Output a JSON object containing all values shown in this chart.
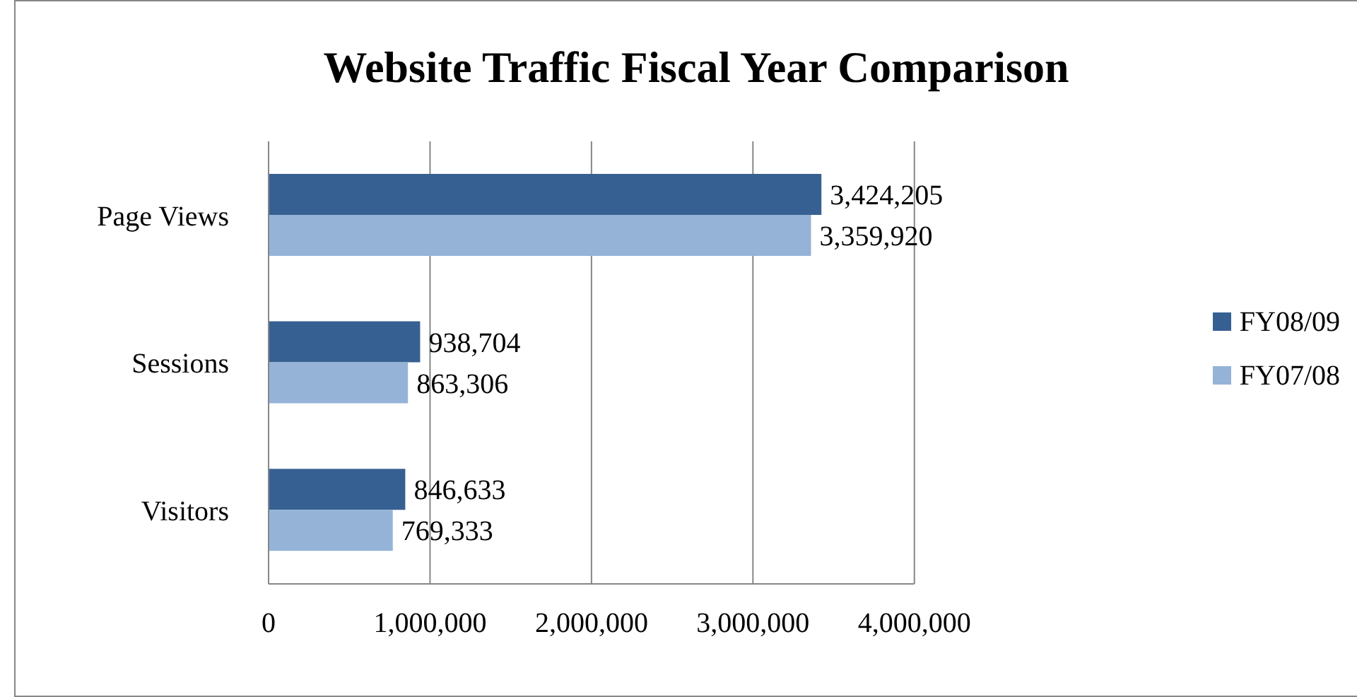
{
  "chart_data": {
    "type": "bar",
    "orientation": "horizontal",
    "title": "Website Traffic Fiscal Year Comparison",
    "categories": [
      "Page Views",
      "Sessions",
      "Visitors"
    ],
    "series": [
      {
        "name": "FY08/09",
        "color": "#376092",
        "values": [
          3424205,
          938704,
          846633
        ],
        "value_labels": [
          "3,424,205",
          "938,704",
          "846,633"
        ]
      },
      {
        "name": "FY07/08",
        "color": "#95b3d7",
        "values": [
          3359920,
          863306,
          769333
        ],
        "value_labels": [
          "3,359,920",
          "863,306",
          "769,333"
        ]
      }
    ],
    "xlim": [
      0,
      4000000
    ],
    "xticks": [
      0,
      {
        "value": 1000000,
        "label": "1,000,000"
      },
      {
        "value": 2000000,
        "label": "2,000,000"
      },
      {
        "value": 3000000,
        "label": "3,000,000"
      },
      {
        "value": 4000000,
        "label": "4,000,000"
      }
    ],
    "grid": "x",
    "legend": "right"
  }
}
